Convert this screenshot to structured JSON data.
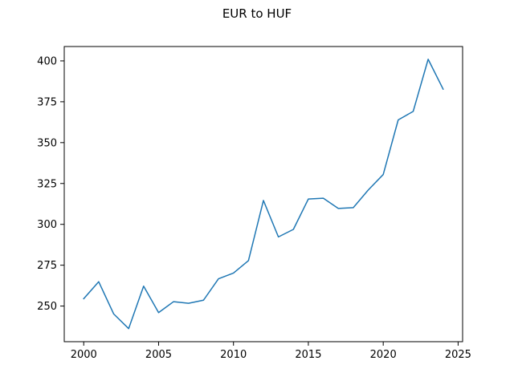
{
  "chart_data": {
    "type": "line",
    "title": "EUR to HUF",
    "xlabel": "",
    "ylabel": "",
    "xlim": [
      1998.7,
      2025.3
    ],
    "ylim": [
      228.2,
      408.8
    ],
    "x_ticks": [
      2000,
      2005,
      2010,
      2015,
      2020,
      2025
    ],
    "y_ticks": [
      250,
      275,
      300,
      325,
      350,
      375,
      400
    ],
    "grid": false,
    "series": [
      {
        "color": "#1f77b4",
        "x": [
          2000,
          2001,
          2002,
          2003,
          2004,
          2005,
          2006,
          2007,
          2008,
          2009,
          2010,
          2011,
          2012,
          2013,
          2014,
          2015,
          2016,
          2017,
          2018,
          2019,
          2020,
          2021,
          2022,
          2023,
          2024
        ],
        "y": [
          254.5,
          264.9,
          245.2,
          236.2,
          262.2,
          246.0,
          252.7,
          251.7,
          253.6,
          266.7,
          270.2,
          277.8,
          314.6,
          292.3,
          296.9,
          315.5,
          316.0,
          309.7,
          310.2,
          321.0,
          330.5,
          363.9,
          369.1,
          401.0,
          382.7
        ]
      }
    ]
  }
}
